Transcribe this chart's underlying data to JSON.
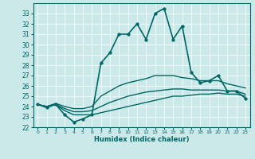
{
  "xlabel": "Humidex (Indice chaleur)",
  "background_color": "#cce9e9",
  "grid_color": "#ffffff",
  "line_color": "#006666",
  "xlim": [
    -0.5,
    23.5
  ],
  "ylim": [
    22,
    34
  ],
  "yticks": [
    22,
    23,
    24,
    25,
    26,
    27,
    28,
    29,
    30,
    31,
    32,
    33
  ],
  "xticks": [
    0,
    1,
    2,
    3,
    4,
    5,
    6,
    7,
    8,
    9,
    10,
    11,
    12,
    13,
    14,
    15,
    16,
    17,
    18,
    19,
    20,
    21,
    22,
    23
  ],
  "series": [
    {
      "x": [
        0,
        1,
        2,
        3,
        4,
        5,
        6,
        7,
        8,
        9,
        10,
        11,
        12,
        13,
        14,
        15,
        16,
        17,
        18,
        19,
        20,
        21,
        22,
        23
      ],
      "y": [
        24.2,
        23.9,
        24.2,
        23.2,
        22.5,
        22.8,
        23.2,
        28.2,
        29.2,
        31.0,
        31.0,
        32.0,
        30.5,
        33.0,
        33.5,
        30.5,
        31.8,
        27.3,
        26.3,
        26.5,
        27.0,
        25.5,
        25.5,
        24.8
      ],
      "has_markers": true,
      "linewidth": 1.2,
      "markersize": 2.5
    },
    {
      "x": [
        0,
        1,
        2,
        3,
        4,
        5,
        6,
        7,
        8,
        9,
        10,
        11,
        12,
        13,
        14,
        15,
        16,
        17,
        18,
        19,
        20,
        21,
        22,
        23
      ],
      "y": [
        24.2,
        24.0,
        24.3,
        24.0,
        23.8,
        23.8,
        24.0,
        25.0,
        25.5,
        26.0,
        26.3,
        26.5,
        26.7,
        27.0,
        27.0,
        27.0,
        26.8,
        26.7,
        26.5,
        26.5,
        26.5,
        26.2,
        26.0,
        25.8
      ],
      "has_markers": false,
      "linewidth": 1.0,
      "markersize": 0
    },
    {
      "x": [
        0,
        1,
        2,
        3,
        4,
        5,
        6,
        7,
        8,
        9,
        10,
        11,
        12,
        13,
        14,
        15,
        16,
        17,
        18,
        19,
        20,
        21,
        22,
        23
      ],
      "y": [
        24.2,
        24.0,
        24.2,
        23.8,
        23.5,
        23.5,
        23.6,
        24.0,
        24.4,
        24.7,
        25.0,
        25.2,
        25.4,
        25.5,
        25.6,
        25.7,
        25.7,
        25.6,
        25.6,
        25.6,
        25.6,
        25.5,
        25.5,
        25.2
      ],
      "has_markers": false,
      "linewidth": 1.0,
      "markersize": 0
    },
    {
      "x": [
        0,
        1,
        2,
        3,
        4,
        5,
        6,
        7,
        8,
        9,
        10,
        11,
        12,
        13,
        14,
        15,
        16,
        17,
        18,
        19,
        20,
        21,
        22,
        23
      ],
      "y": [
        24.2,
        24.0,
        24.2,
        23.6,
        23.2,
        23.2,
        23.2,
        23.4,
        23.6,
        23.8,
        24.0,
        24.2,
        24.4,
        24.6,
        24.8,
        25.0,
        25.0,
        25.1,
        25.2,
        25.2,
        25.3,
        25.2,
        25.2,
        25.0
      ],
      "has_markers": false,
      "linewidth": 1.0,
      "markersize": 0
    }
  ]
}
